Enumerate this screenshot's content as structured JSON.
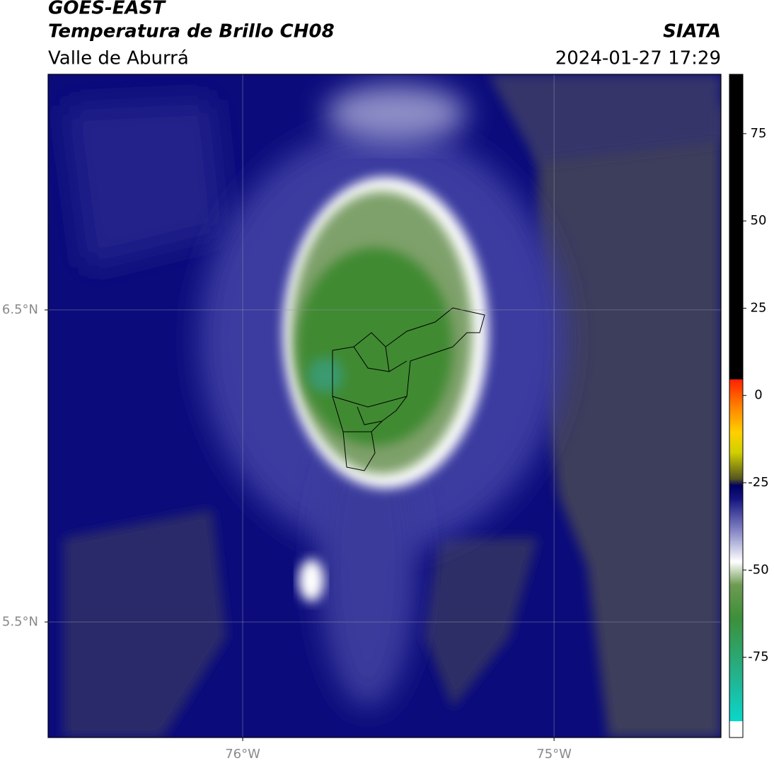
{
  "header": {
    "title": "GOES-EAST",
    "subtitle": "Temperatura de Brillo CH08",
    "location": "Valle de Aburrá",
    "source": "SIATA",
    "datetime": "2024-01-27 17:29"
  },
  "map": {
    "xlim": [
      -76.625,
      -74.464
    ],
    "ylim": [
      5.13,
      7.255
    ],
    "xticks": [
      {
        "value": -76,
        "label": "76°W"
      },
      {
        "value": -75,
        "label": "75°W"
      }
    ],
    "yticks": [
      {
        "value": 6.5,
        "label": "6.5°N"
      },
      {
        "value": 5.5,
        "label": "5.5°N"
      }
    ],
    "grid": true
  },
  "colorbar": {
    "lim": [
      -98,
      92
    ],
    "ticks": [
      75,
      50,
      25,
      0,
      -25,
      -50,
      -75
    ]
  }
}
